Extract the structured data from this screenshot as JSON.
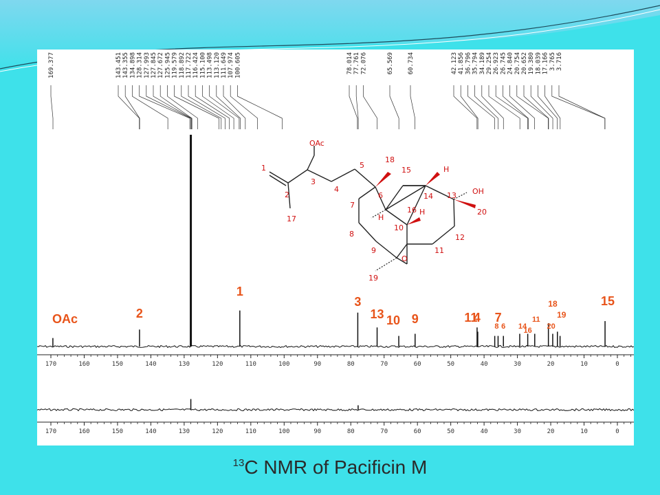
{
  "theme": {
    "background": "#3ee1ea",
    "label_color": "#e8541a",
    "trace_color": "#111111"
  },
  "caption": {
    "superscript": "13",
    "text": "C NMR of Pacificin M"
  },
  "chart_data": {
    "type": "line",
    "title": "",
    "xlabel": "",
    "ylabel": "",
    "xlim": [
      175,
      -5
    ],
    "x_ticks": [
      "170",
      "160",
      "150",
      "140",
      "130",
      "120",
      "110",
      "100",
      "90",
      "80",
      "70",
      "60",
      "50",
      "40",
      "30",
      "20",
      "10",
      "0"
    ],
    "peak_list_groups": [
      [
        "169.377"
      ],
      [
        "143.451",
        "143.355",
        "134.898",
        "128.314",
        "127.993",
        "127.845",
        "127.672",
        "125.945",
        "119.579",
        "118.892",
        "117.722",
        "116.424",
        "115.100",
        "113.498",
        "113.120",
        "111.649",
        "107.974",
        "100.605"
      ],
      [
        "78.014",
        "77.761",
        "72.076"
      ],
      [
        "65.569"
      ],
      [
        "60.734"
      ],
      [
        "42.123",
        "41.856",
        "36.796",
        "35.794",
        "34.189",
        "29.254",
        "26.923",
        "26.745",
        "24.840",
        "20.754",
        "20.652",
        "19.380",
        "18.039",
        "17.166",
        "3.765",
        "3.716"
      ]
    ],
    "main_spectrum": [
      {
        "ppm": 169.4,
        "height": 0.04,
        "label": "OAc"
      },
      {
        "ppm": 143.4,
        "height": 0.08,
        "label": "2"
      },
      {
        "ppm": 128.0,
        "height": 1.0,
        "label": ""
      },
      {
        "ppm": 113.3,
        "height": 0.17,
        "label": "1"
      },
      {
        "ppm": 77.9,
        "height": 0.16,
        "label": "3"
      },
      {
        "ppm": 72.1,
        "height": 0.09,
        "label": "13"
      },
      {
        "ppm": 65.6,
        "height": 0.05,
        "label": "10"
      },
      {
        "ppm": 60.7,
        "height": 0.06,
        "label": "9"
      },
      {
        "ppm": 42.1,
        "height": 0.09,
        "label": "4"
      },
      {
        "ppm": 41.9,
        "height": 0.07,
        "label": "11"
      },
      {
        "ppm": 36.8,
        "height": 0.05,
        "label": "7"
      },
      {
        "ppm": 35.8,
        "height": 0.05,
        "label": "8"
      },
      {
        "ppm": 34.2,
        "height": 0.05,
        "label": "6"
      },
      {
        "ppm": 29.3,
        "height": 0.06,
        "label": "14"
      },
      {
        "ppm": 26.9,
        "height": 0.06,
        "label": "16"
      },
      {
        "ppm": 24.8,
        "height": 0.06,
        "label": "11"
      },
      {
        "ppm": 20.7,
        "height": 0.11,
        "label": "20"
      },
      {
        "ppm": 19.4,
        "height": 0.06,
        "label": "18"
      },
      {
        "ppm": 18.0,
        "height": 0.07,
        "label": "19"
      },
      {
        "ppm": 17.2,
        "height": 0.05,
        "label": ""
      },
      {
        "ppm": 3.7,
        "height": 0.12,
        "label": "15"
      }
    ],
    "dept_spectrum": [
      {
        "ppm": 128.0,
        "height": 0.12
      },
      {
        "ppm": 77.8,
        "height": 0.05
      }
    ],
    "structure_labels": [
      "1",
      "2",
      "3",
      "4",
      "5",
      "6",
      "7",
      "8",
      "9",
      "10",
      "11",
      "12",
      "13",
      "14",
      "15",
      "16",
      "17",
      "18",
      "19",
      "20",
      "OAc",
      "OH",
      "H",
      "H",
      "H",
      "O"
    ]
  }
}
